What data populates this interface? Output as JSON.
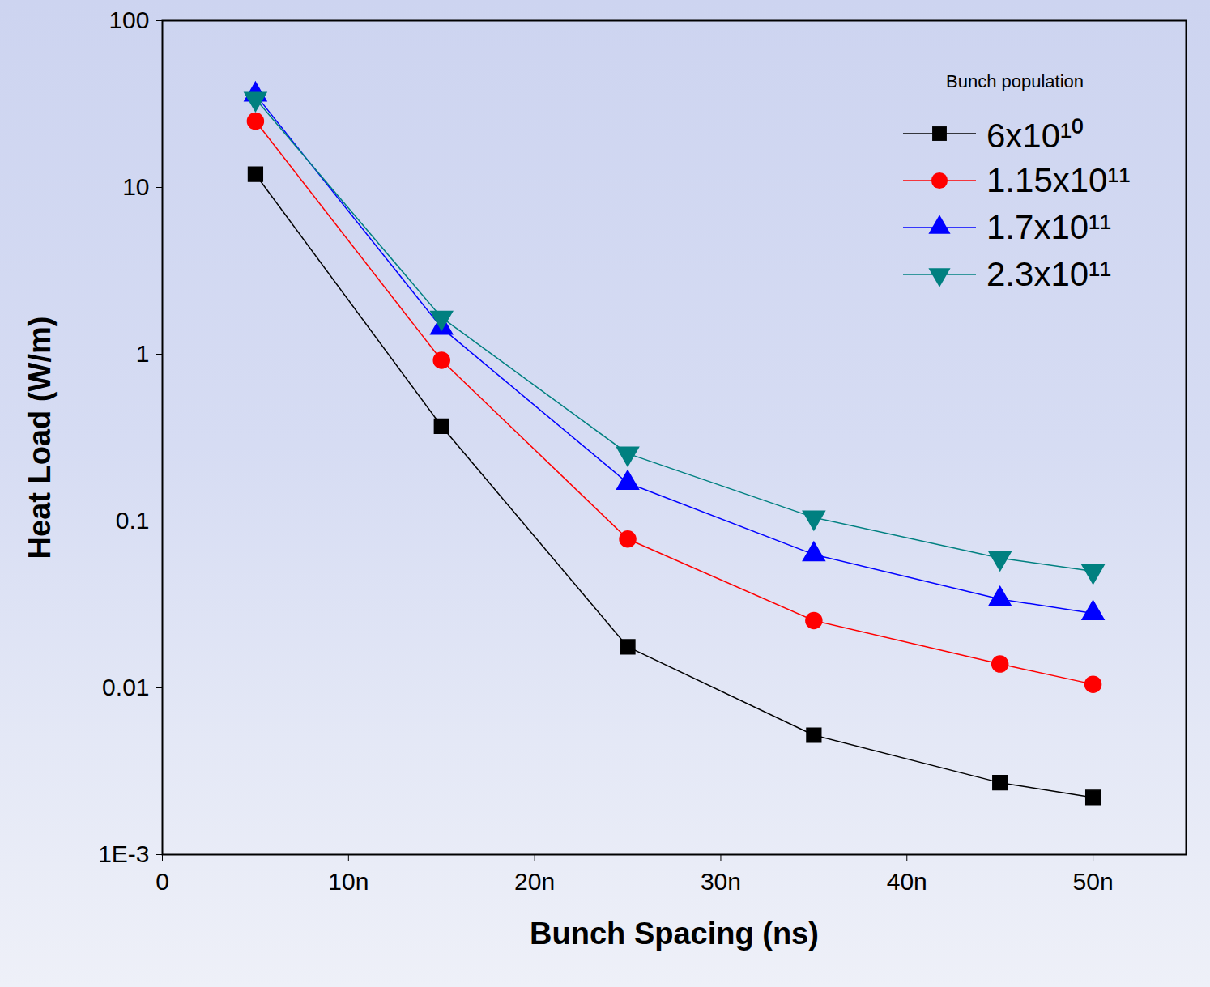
{
  "chart_data": {
    "type": "line",
    "x_label": "Bunch Spacing (ns)",
    "y_label": "Heat Load (W/m)",
    "legend_title": "Bunch population",
    "x": [
      5,
      15,
      25,
      35,
      45,
      50
    ],
    "series": [
      {
        "name": "6x10¹⁰",
        "color": "#000000",
        "marker": "square",
        "values": [
          12,
          0.37,
          0.0176,
          0.0052,
          0.0027,
          0.0022
        ]
      },
      {
        "name": "1.15x10¹¹",
        "color": "#ff0000",
        "marker": "circle",
        "values": [
          25,
          0.92,
          0.078,
          0.0253,
          0.0139,
          0.0105
        ]
      },
      {
        "name": "1.7x10¹¹",
        "color": "#0000ff",
        "marker": "triangle",
        "values": [
          36,
          1.44,
          0.169,
          0.063,
          0.034,
          0.028
        ]
      },
      {
        "name": "2.3x10¹¹",
        "color": "#008080",
        "marker": "triangle-down",
        "values": [
          34,
          1.66,
          0.254,
          0.105,
          0.06,
          0.05
        ]
      }
    ],
    "xlim": [
      0,
      55
    ],
    "xticks": [
      0,
      {
        "value": 10,
        "label": "10n"
      },
      {
        "value": 20,
        "label": "20n"
      },
      {
        "value": 30,
        "label": "30n"
      },
      {
        "value": 40,
        "label": "40n"
      },
      {
        "value": 50,
        "label": "50n"
      }
    ],
    "ylim": [
      0.001,
      100
    ],
    "yticks": [
      {
        "value": 0.001,
        "label": "1E-3"
      },
      0.01,
      0.1,
      1,
      10,
      100
    ],
    "log": "y",
    "grid": false,
    "legend": "top-right"
  }
}
